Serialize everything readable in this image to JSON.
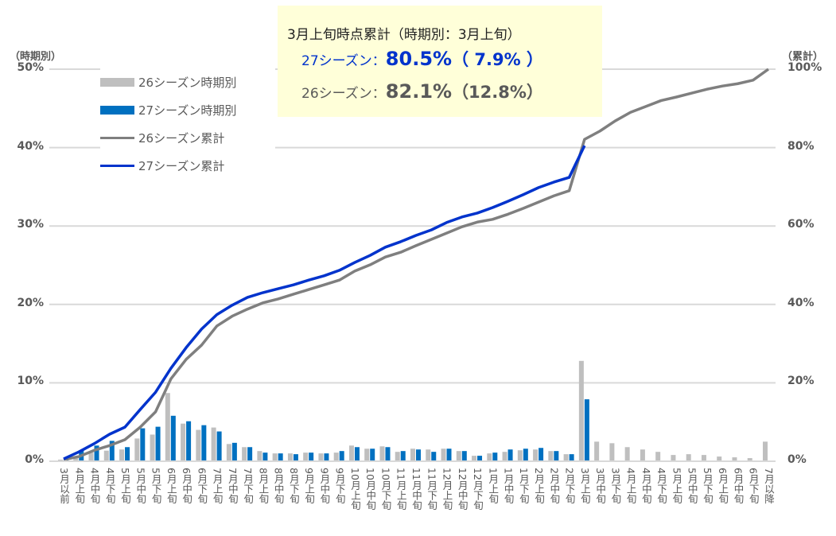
{
  "chart_data": {
    "type": "bar+line",
    "left_axis_title": "（時期別）",
    "right_axis_title": "（累計）",
    "left_ticks": [
      "0%",
      "10%",
      "20%",
      "30%",
      "40%",
      "50%"
    ],
    "right_ticks": [
      "0%",
      "20%",
      "40%",
      "60%",
      "80%",
      "100%"
    ],
    "ylim_left": [
      0,
      50
    ],
    "ylim_right": [
      0,
      100
    ],
    "grid": true,
    "legend_position": "top-left",
    "categories": [
      "3月以前",
      "4月上旬",
      "4月中旬",
      "4月下旬",
      "5月上旬",
      "5月中旬",
      "5月下旬",
      "6月上旬",
      "6月中旬",
      "6月下旬",
      "7月上旬",
      "7月中旬",
      "7月下旬",
      "8月上旬",
      "8月中旬",
      "8月下旬",
      "9月上旬",
      "9月中旬",
      "9月下旬",
      "10月上旬",
      "10月中旬",
      "10月下旬",
      "11月上旬",
      "11月中旬",
      "11月下旬",
      "12月上旬",
      "12月中旬",
      "12月下旬",
      "1月上旬",
      "1月中旬",
      "1月下旬",
      "2月上旬",
      "2月中旬",
      "2月下旬",
      "3月上旬",
      "3月中旬",
      "3月下旬",
      "4月上旬",
      "4月中旬",
      "4月下旬",
      "5月上旬",
      "5月中旬",
      "5月下旬",
      "6月上旬",
      "6月中旬",
      "6月下旬",
      "7月以降"
    ],
    "series": [
      {
        "name": "26シーズン時期別",
        "type": "bar",
        "axis": "left",
        "color": "#bfbfbf",
        "values": [
          0.2,
          0.6,
          1.1,
          1.35,
          1.5,
          2.9,
          3.4,
          8.7,
          4.8,
          4.0,
          4.3,
          2.2,
          1.8,
          1.3,
          1.0,
          1.0,
          1.1,
          1.0,
          1.1,
          2.0,
          1.6,
          1.9,
          1.2,
          1.6,
          1.5,
          1.6,
          1.3,
          0.7,
          1.0,
          1.2,
          1.4,
          1.5,
          1.3,
          0.9,
          12.8,
          2.5,
          2.3,
          1.8,
          1.5,
          1.2,
          0.8,
          0.9,
          0.8,
          0.6,
          0.5,
          0.4,
          2.5
        ]
      },
      {
        "name": "27シーズン時期別",
        "type": "bar",
        "axis": "left",
        "color": "#0070c0",
        "values": [
          0.2,
          1.4,
          2.0,
          2.6,
          1.8,
          4.2,
          4.4,
          5.8,
          5.1,
          4.6,
          3.8,
          2.35,
          1.8,
          1.1,
          1.0,
          0.9,
          1.1,
          1.0,
          1.3,
          1.8,
          1.6,
          1.8,
          1.3,
          1.5,
          1.2,
          1.6,
          1.3,
          0.7,
          1.1,
          1.5,
          1.6,
          1.7,
          1.3,
          0.9,
          7.9,
          null,
          null,
          null,
          null,
          null,
          null,
          null,
          null,
          null,
          null,
          null,
          null
        ]
      },
      {
        "name": "26シーズン累計",
        "type": "line",
        "axis": "right",
        "color": "#7f7f7f",
        "values": [
          0.4,
          1.2,
          2.8,
          4.0,
          5.5,
          8.7,
          12.6,
          21.0,
          26.0,
          29.6,
          34.5,
          37.0,
          38.8,
          40.4,
          41.4,
          42.6,
          43.8,
          45.0,
          46.2,
          48.5,
          50.1,
          52.1,
          53.3,
          55.0,
          56.6,
          58.2,
          59.8,
          61.0,
          61.7,
          63.0,
          64.5,
          66.1,
          67.7,
          69.0,
          82.1,
          84.2,
          86.8,
          89.0,
          90.5,
          92.0,
          92.9,
          93.9,
          94.9,
          95.7,
          96.3,
          97.2,
          100
        ]
      },
      {
        "name": "27シーズン累計",
        "type": "line",
        "axis": "right",
        "color": "#0033cc",
        "values": [
          0.6,
          2.4,
          4.5,
          6.9,
          8.7,
          13.2,
          17.6,
          23.7,
          29.0,
          33.7,
          37.4,
          39.8,
          41.8,
          43.0,
          44.0,
          45.0,
          46.2,
          47.3,
          48.7,
          50.7,
          52.5,
          54.6,
          56.0,
          57.6,
          59.0,
          60.9,
          62.3,
          63.3,
          64.7,
          66.3,
          68.0,
          69.8,
          71.2,
          72.4,
          80.5,
          null,
          null,
          null,
          null,
          null,
          null,
          null,
          null,
          null,
          null,
          null,
          null
        ]
      }
    ]
  },
  "note": {
    "title": "3月上旬時点累計（時期別：3月上旬）",
    "s27_label": "27シーズン：",
    "s27_cum": "80.5%",
    "s27_period": "（ 7.9% ）",
    "s26_label": "26シーズン：",
    "s26_cum": "82.1%",
    "s26_period": "（12.8%）",
    "s27_color": "#0033cc",
    "s26_color": "#595959"
  }
}
